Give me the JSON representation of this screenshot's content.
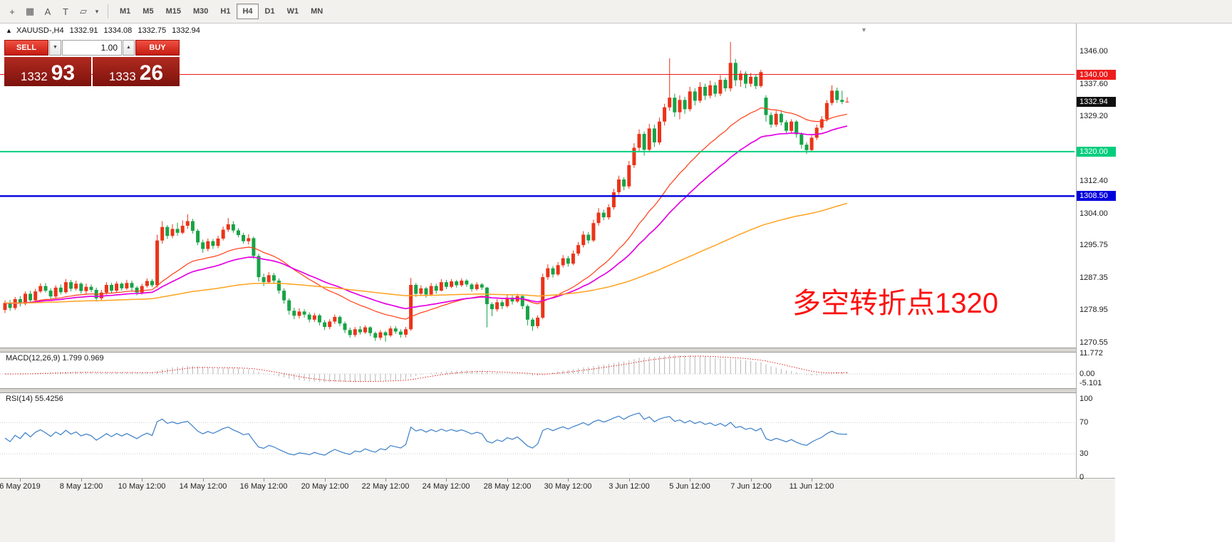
{
  "toolbar": {
    "icons": [
      {
        "name": "crosshair-icon",
        "glyph": "+"
      },
      {
        "name": "grid-icon",
        "glyph": "▦"
      },
      {
        "name": "text-label-icon",
        "glyph": "A"
      },
      {
        "name": "text-box-icon",
        "glyph": "T"
      },
      {
        "name": "shapes-icon",
        "glyph": "▱"
      },
      {
        "name": "dropdown-caret-icon",
        "glyph": "▾"
      }
    ],
    "timeframes": [
      "M1",
      "M5",
      "M15",
      "M30",
      "H1",
      "H4",
      "D1",
      "W1",
      "MN"
    ],
    "active_timeframe": "H4"
  },
  "chart": {
    "direction_marker": "▲",
    "symbol": "XAUUSD-,H4",
    "open": "1332.91",
    "high": "1334.08",
    "low": "1332.75",
    "close": "1332.94",
    "annotation": "多空转折点1320",
    "shift_marker": "▼",
    "current_price_label": "1332.94"
  },
  "trade_panel": {
    "sell": "SELL",
    "buy": "BUY",
    "volume": "1.00",
    "volume_down_icon": "▼",
    "volume_up_icon": "▲",
    "bid_main": "1332",
    "bid_pips": "93",
    "ask_main": "1333",
    "ask_pips": "26"
  },
  "price_axis": {
    "ticks": [
      "1346.00",
      "1337.60",
      "1329.20",
      "1312.40",
      "1304.00",
      "1295.75",
      "1287.35",
      "1278.95",
      "1270.55"
    ]
  },
  "macd_panel": {
    "label": "MACD(12,26,9) 1.799 0.969",
    "ticks": [
      "11.772",
      "0.00",
      "-5.101"
    ]
  },
  "rsi_panel": {
    "label": "RSI(14) 55.4256",
    "ticks": [
      "100",
      "70",
      "30",
      "0"
    ]
  },
  "time_axis": {
    "labels": [
      {
        "i": 3,
        "t": "6 May 2019"
      },
      {
        "i": 15,
        "t": "8 May 12:00"
      },
      {
        "i": 27,
        "t": "10 May 12:00"
      },
      {
        "i": 39,
        "t": "14 May 12:00"
      },
      {
        "i": 51,
        "t": "16 May 12:00"
      },
      {
        "i": 63,
        "t": "20 May 12:00"
      },
      {
        "i": 75,
        "t": "22 May 12:00"
      },
      {
        "i": 87,
        "t": "24 May 12:00"
      },
      {
        "i": 99,
        "t": "28 May 12:00"
      },
      {
        "i": 111,
        "t": "30 May 12:00"
      },
      {
        "i": 123,
        "t": "3 Jun 12:00"
      },
      {
        "i": 135,
        "t": "5 Jun 12:00"
      },
      {
        "i": 147,
        "t": "7 Jun 12:00"
      },
      {
        "i": 159,
        "t": "11 Jun 12:00"
      }
    ]
  },
  "chart_data": {
    "type": "candlestick",
    "symbol": "XAUUSD",
    "timeframe": "H4",
    "up_color": "#ea3418",
    "down_color": "#17a346",
    "y_range": [
      1268.0,
      1349.5
    ],
    "current_price": 1332.94,
    "price_levels": [
      {
        "label": "1340.00",
        "price": 1340.0,
        "color": "#ee1c1c",
        "width": 1
      },
      {
        "label": "1320.00",
        "price": 1320.0,
        "color": "#00cd7d",
        "width": 2
      },
      {
        "label": "1308.50",
        "price": 1308.5,
        "color": "#0000dd",
        "width": 2.4
      }
    ],
    "overlays": [
      {
        "name": "fast-ma",
        "type": "ema",
        "period": 25,
        "color": "#ff3c14",
        "width": 1.2
      },
      {
        "name": "mid-ma",
        "type": "ema",
        "period": 40,
        "color": "#e400e4",
        "width": 1.7
      },
      {
        "name": "slow-ma",
        "type": "ema",
        "period": 144,
        "color": "#ffa21e",
        "width": 1.5
      }
    ],
    "indicators": [
      {
        "name": "MACD",
        "params": [
          12,
          26,
          9
        ],
        "display": "1.799 0.969",
        "hist_color": "#b6b6b6",
        "signal_color": "#e02222",
        "max": 11.772,
        "min": -5.101
      },
      {
        "name": "RSI",
        "params": [
          14
        ],
        "display": "55.4256",
        "color": "#3a7ec8",
        "levels": [
          70,
          30
        ],
        "range": [
          0,
          100
        ]
      }
    ],
    "candles": [
      [
        1279.0,
        1281.5,
        1278.2,
        1280.8
      ],
      [
        1280.8,
        1281.6,
        1278.8,
        1279.5
      ],
      [
        1279.5,
        1282.4,
        1279.0,
        1281.8
      ],
      [
        1281.8,
        1282.6,
        1279.9,
        1280.6
      ],
      [
        1280.6,
        1283.8,
        1280.2,
        1283.2
      ],
      [
        1283.2,
        1284.0,
        1281.0,
        1281.5
      ],
      [
        1281.5,
        1284.5,
        1281.2,
        1283.8
      ],
      [
        1283.8,
        1285.9,
        1283.4,
        1285.2
      ],
      [
        1285.2,
        1286.0,
        1283.5,
        1284.0
      ],
      [
        1284.0,
        1284.6,
        1281.8,
        1282.5
      ],
      [
        1282.5,
        1285.4,
        1282.0,
        1284.8
      ],
      [
        1284.8,
        1285.6,
        1283.0,
        1283.6
      ],
      [
        1283.6,
        1287.0,
        1283.2,
        1286.2
      ],
      [
        1286.2,
        1286.8,
        1283.8,
        1284.5
      ],
      [
        1284.5,
        1286.6,
        1284.0,
        1285.8
      ],
      [
        1285.8,
        1286.2,
        1283.2,
        1283.9
      ],
      [
        1283.9,
        1285.8,
        1283.0,
        1285.0
      ],
      [
        1285.0,
        1285.6,
        1283.6,
        1284.2
      ],
      [
        1284.2,
        1284.8,
        1281.2,
        1282.0
      ],
      [
        1282.0,
        1284.2,
        1281.5,
        1283.5
      ],
      [
        1283.5,
        1286.2,
        1283.0,
        1285.5
      ],
      [
        1285.5,
        1286.0,
        1283.4,
        1284.0
      ],
      [
        1284.0,
        1286.4,
        1283.6,
        1285.8
      ],
      [
        1285.8,
        1286.2,
        1284.0,
        1284.6
      ],
      [
        1284.6,
        1286.8,
        1284.2,
        1286.0
      ],
      [
        1286.0,
        1286.6,
        1284.0,
        1284.8
      ],
      [
        1284.8,
        1285.2,
        1282.8,
        1283.5
      ],
      [
        1283.5,
        1285.8,
        1283.0,
        1285.2
      ],
      [
        1285.2,
        1287.2,
        1284.8,
        1286.5
      ],
      [
        1286.5,
        1287.0,
        1284.9,
        1285.4
      ],
      [
        1285.4,
        1298.5,
        1284.8,
        1297.0
      ],
      [
        1297.0,
        1302.0,
        1296.2,
        1300.5
      ],
      [
        1300.5,
        1301.0,
        1297.4,
        1298.2
      ],
      [
        1298.2,
        1301.2,
        1297.6,
        1300.0
      ],
      [
        1300.0,
        1301.6,
        1298.2,
        1299.0
      ],
      [
        1299.0,
        1302.2,
        1298.6,
        1300.8
      ],
      [
        1300.8,
        1303.8,
        1300.0,
        1302.0
      ],
      [
        1302.0,
        1302.6,
        1298.8,
        1299.5
      ],
      [
        1299.5,
        1300.0,
        1295.8,
        1296.5
      ],
      [
        1296.5,
        1297.2,
        1293.8,
        1294.8
      ],
      [
        1294.8,
        1297.5,
        1294.2,
        1296.8
      ],
      [
        1296.8,
        1297.4,
        1294.8,
        1295.6
      ],
      [
        1295.6,
        1298.2,
        1295.0,
        1297.5
      ],
      [
        1297.5,
        1300.6,
        1297.0,
        1299.8
      ],
      [
        1299.8,
        1302.8,
        1299.2,
        1301.2
      ],
      [
        1301.2,
        1302.0,
        1299.0,
        1299.6
      ],
      [
        1299.6,
        1300.2,
        1297.8,
        1298.4
      ],
      [
        1298.4,
        1299.0,
        1296.2,
        1296.8
      ],
      [
        1296.8,
        1298.6,
        1296.0,
        1297.6
      ],
      [
        1297.6,
        1298.0,
        1292.2,
        1293.0
      ],
      [
        1293.0,
        1293.6,
        1286.4,
        1287.5
      ],
      [
        1287.5,
        1288.4,
        1285.2,
        1286.2
      ],
      [
        1286.2,
        1288.8,
        1285.8,
        1288.0
      ],
      [
        1288.0,
        1288.6,
        1286.0,
        1286.6
      ],
      [
        1286.6,
        1287.2,
        1283.2,
        1284.0
      ],
      [
        1284.0,
        1284.6,
        1280.6,
        1281.5
      ],
      [
        1281.5,
        1282.0,
        1277.8,
        1278.8
      ],
      [
        1278.8,
        1279.6,
        1276.6,
        1277.5
      ],
      [
        1277.5,
        1279.4,
        1276.8,
        1278.6
      ],
      [
        1278.6,
        1279.2,
        1277.0,
        1277.8
      ],
      [
        1277.8,
        1278.4,
        1275.8,
        1276.5
      ],
      [
        1276.5,
        1278.2,
        1275.9,
        1277.6
      ],
      [
        1277.6,
        1278.0,
        1275.0,
        1275.8
      ],
      [
        1275.8,
        1276.4,
        1273.8,
        1274.6
      ],
      [
        1274.6,
        1276.6,
        1274.0,
        1276.0
      ],
      [
        1276.0,
        1277.8,
        1275.4,
        1277.2
      ],
      [
        1277.2,
        1277.6,
        1274.8,
        1275.5
      ],
      [
        1275.5,
        1276.0,
        1273.0,
        1273.8
      ],
      [
        1273.8,
        1274.4,
        1271.8,
        1272.5
      ],
      [
        1272.5,
        1274.6,
        1272.0,
        1274.0
      ],
      [
        1274.0,
        1274.8,
        1272.6,
        1273.2
      ],
      [
        1273.2,
        1275.0,
        1272.8,
        1274.5
      ],
      [
        1274.5,
        1274.8,
        1272.2,
        1273.0
      ],
      [
        1273.0,
        1273.4,
        1271.0,
        1271.8
      ],
      [
        1271.8,
        1273.8,
        1271.2,
        1273.2
      ],
      [
        1273.2,
        1273.6,
        1270.8,
        1272.4
      ],
      [
        1272.4,
        1274.8,
        1272.0,
        1274.2
      ],
      [
        1274.2,
        1274.8,
        1272.8,
        1273.4
      ],
      [
        1273.4,
        1274.0,
        1271.8,
        1272.6
      ],
      [
        1272.6,
        1274.6,
        1271.9,
        1274.0
      ],
      [
        1274.0,
        1287.3,
        1273.6,
        1285.5
      ],
      [
        1285.5,
        1286.0,
        1282.4,
        1283.2
      ],
      [
        1283.2,
        1285.4,
        1282.6,
        1284.6
      ],
      [
        1284.6,
        1285.0,
        1282.2,
        1283.0
      ],
      [
        1283.0,
        1286.0,
        1282.6,
        1285.2
      ],
      [
        1285.2,
        1285.8,
        1283.2,
        1284.0
      ],
      [
        1284.0,
        1287.0,
        1283.8,
        1286.2
      ],
      [
        1286.2,
        1286.8,
        1284.4,
        1285.0
      ],
      [
        1285.0,
        1287.0,
        1284.6,
        1286.4
      ],
      [
        1286.4,
        1286.8,
        1284.8,
        1285.4
      ],
      [
        1285.4,
        1287.2,
        1285.0,
        1286.6
      ],
      [
        1286.6,
        1287.0,
        1285.0,
        1285.6
      ],
      [
        1285.6,
        1286.0,
        1283.8,
        1284.4
      ],
      [
        1284.4,
        1286.2,
        1284.0,
        1285.6
      ],
      [
        1285.6,
        1286.0,
        1284.2,
        1284.8
      ],
      [
        1284.8,
        1285.0,
        1274.5,
        1280.5
      ],
      [
        1280.5,
        1281.0,
        1277.4,
        1279.2
      ],
      [
        1279.2,
        1281.8,
        1278.6,
        1281.0
      ],
      [
        1281.0,
        1281.6,
        1279.2,
        1280.0
      ],
      [
        1280.0,
        1283.0,
        1279.6,
        1282.2
      ],
      [
        1282.2,
        1282.8,
        1280.4,
        1281.2
      ],
      [
        1281.2,
        1283.2,
        1280.8,
        1282.6
      ],
      [
        1282.6,
        1283.0,
        1279.2,
        1280.0
      ],
      [
        1280.0,
        1280.4,
        1275.0,
        1276.5
      ],
      [
        1276.5,
        1277.0,
        1273.6,
        1274.8
      ],
      [
        1274.8,
        1277.6,
        1274.2,
        1277.0
      ],
      [
        1277.0,
        1288.4,
        1276.6,
        1287.5
      ],
      [
        1287.5,
        1290.8,
        1286.8,
        1289.8
      ],
      [
        1289.8,
        1290.4,
        1287.4,
        1288.2
      ],
      [
        1288.2,
        1291.4,
        1287.8,
        1290.6
      ],
      [
        1290.6,
        1293.2,
        1290.0,
        1292.4
      ],
      [
        1292.4,
        1293.0,
        1290.2,
        1291.0
      ],
      [
        1291.0,
        1294.4,
        1290.6,
        1293.6
      ],
      [
        1293.6,
        1296.6,
        1293.0,
        1295.8
      ],
      [
        1295.8,
        1299.4,
        1295.2,
        1298.5
      ],
      [
        1298.5,
        1299.2,
        1296.2,
        1297.0
      ],
      [
        1297.0,
        1302.4,
        1296.6,
        1301.5
      ],
      [
        1301.5,
        1305.4,
        1300.8,
        1304.2
      ],
      [
        1304.2,
        1305.0,
        1302.2,
        1303.0
      ],
      [
        1303.0,
        1306.4,
        1302.4,
        1305.6
      ],
      [
        1305.6,
        1310.4,
        1305.0,
        1309.5
      ],
      [
        1309.5,
        1313.8,
        1308.8,
        1312.8
      ],
      [
        1312.8,
        1313.4,
        1310.0,
        1311.0
      ],
      [
        1311.0,
        1317.6,
        1310.4,
        1316.5
      ],
      [
        1316.5,
        1322.2,
        1315.8,
        1321.0
      ],
      [
        1321.0,
        1325.8,
        1320.2,
        1324.6
      ],
      [
        1324.6,
        1325.2,
        1319.0,
        1320.5
      ],
      [
        1320.5,
        1327.2,
        1319.8,
        1326.0
      ],
      [
        1326.0,
        1327.0,
        1321.2,
        1322.4
      ],
      [
        1322.4,
        1328.8,
        1321.8,
        1327.8
      ],
      [
        1327.8,
        1332.4,
        1326.8,
        1331.5
      ],
      [
        1331.5,
        1344.2,
        1330.6,
        1334.0
      ],
      [
        1334.0,
        1335.0,
        1329.0,
        1330.2
      ],
      [
        1330.2,
        1334.6,
        1328.4,
        1333.4
      ],
      [
        1333.4,
        1334.2,
        1329.8,
        1331.0
      ],
      [
        1331.0,
        1336.8,
        1330.4,
        1335.6
      ],
      [
        1335.6,
        1336.4,
        1332.0,
        1333.2
      ],
      [
        1333.2,
        1338.0,
        1332.6,
        1336.8
      ],
      [
        1336.8,
        1337.6,
        1333.4,
        1334.5
      ],
      [
        1334.5,
        1338.4,
        1333.8,
        1337.2
      ],
      [
        1337.2,
        1338.0,
        1334.2,
        1335.0
      ],
      [
        1335.0,
        1339.8,
        1334.4,
        1338.6
      ],
      [
        1338.6,
        1339.2,
        1335.6,
        1336.4
      ],
      [
        1336.4,
        1348.4,
        1335.6,
        1343.0
      ],
      [
        1343.0,
        1344.0,
        1337.0,
        1338.5
      ],
      [
        1338.5,
        1341.0,
        1336.8,
        1340.2
      ],
      [
        1340.2,
        1340.8,
        1336.4,
        1337.6
      ],
      [
        1337.6,
        1340.4,
        1336.8,
        1339.4
      ],
      [
        1339.4,
        1340.0,
        1336.2,
        1337.0
      ],
      [
        1337.0,
        1341.2,
        1336.6,
        1340.6
      ],
      [
        1334.0,
        1334.6,
        1327.8,
        1329.5
      ],
      [
        1329.5,
        1330.2,
        1326.2,
        1327.0
      ],
      [
        1327.0,
        1330.6,
        1326.4,
        1329.8
      ],
      [
        1329.8,
        1330.4,
        1326.8,
        1327.6
      ],
      [
        1327.6,
        1328.2,
        1324.6,
        1325.4
      ],
      [
        1325.4,
        1328.4,
        1324.8,
        1327.8
      ],
      [
        1327.8,
        1328.2,
        1323.6,
        1324.5
      ],
      [
        1324.5,
        1325.0,
        1320.8,
        1321.8
      ],
      [
        1321.8,
        1322.4,
        1319.4,
        1320.4
      ],
      [
        1320.4,
        1324.2,
        1319.8,
        1323.6
      ],
      [
        1323.6,
        1327.0,
        1323.0,
        1326.2
      ],
      [
        1326.2,
        1329.2,
        1325.6,
        1328.4
      ],
      [
        1328.4,
        1333.4,
        1327.8,
        1332.6
      ],
      [
        1332.6,
        1337.2,
        1332.0,
        1335.8
      ],
      [
        1335.8,
        1336.6,
        1332.6,
        1333.4
      ],
      [
        1333.4,
        1335.8,
        1332.3,
        1332.9
      ],
      [
        1332.91,
        1334.08,
        1332.75,
        1332.94
      ]
    ]
  }
}
